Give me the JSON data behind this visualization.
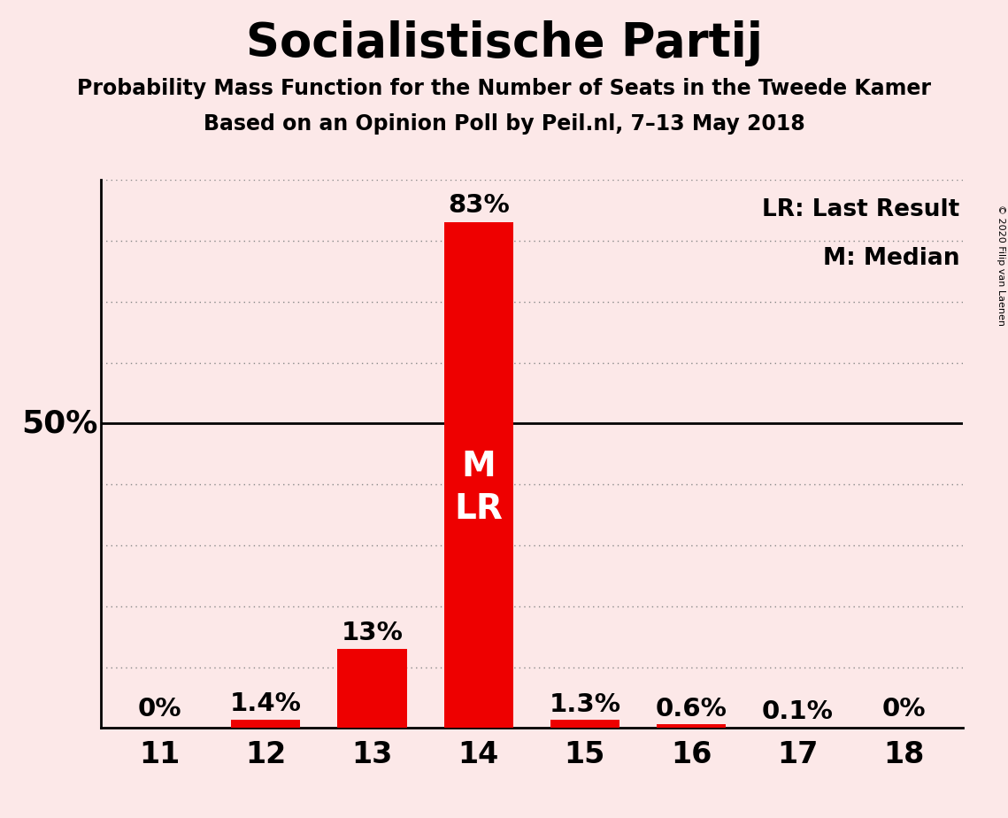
{
  "title": "Socialistische Partij",
  "subtitle1": "Probability Mass Function for the Number of Seats in the Tweede Kamer",
  "subtitle2": "Based on an Opinion Poll by Peil.nl, 7–13 May 2018",
  "categories": [
    11,
    12,
    13,
    14,
    15,
    16,
    17,
    18
  ],
  "values": [
    0.0,
    1.4,
    13.0,
    83.0,
    1.3,
    0.6,
    0.1,
    0.0
  ],
  "labels": [
    "0%",
    "1.4%",
    "13%",
    "83%",
    "1.3%",
    "0.6%",
    "0.1%",
    "0%"
  ],
  "bar_color": "#ee0000",
  "background_color": "#fce8e8",
  "title_fontsize": 38,
  "subtitle_fontsize": 17,
  "bar_label_fontsize": 21,
  "axis_tick_fontsize": 24,
  "legend_fontsize": 19,
  "fifty_label_fontsize": 26,
  "median_label": "M",
  "last_result_label": "LR",
  "legend_text1": "LR: Last Result",
  "legend_text2": "M: Median",
  "copyright_text": "© 2020 Filip van Laenen",
  "ylim_max": 90,
  "fifty_line": 50,
  "gridline_color": "#888888",
  "solid_line_color": "#000000",
  "yline_positions": [
    10,
    20,
    30,
    40,
    50,
    60,
    70,
    80,
    90
  ],
  "bar_width": 0.65,
  "ml_fontsize": 28
}
